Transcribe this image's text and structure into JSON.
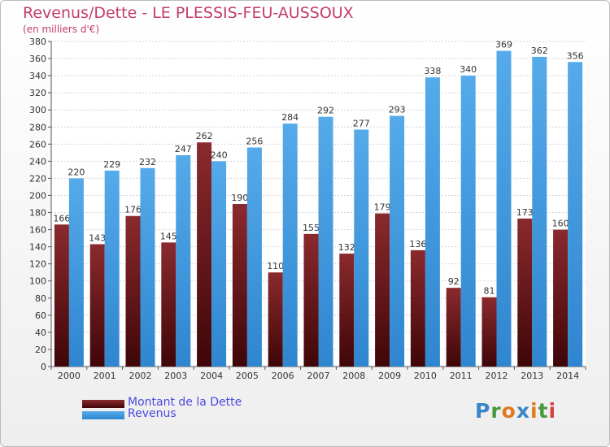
{
  "chart_data": {
    "type": "bar",
    "title": "Revenus/Dette - LE PLESSIS-FEU-AUSSOUX",
    "subtitle": "(en milliers d'€)",
    "categories": [
      "2000",
      "2001",
      "2002",
      "2003",
      "2004",
      "2005",
      "2006",
      "2007",
      "2008",
      "2009",
      "2010",
      "2011",
      "2012",
      "2013",
      "2014"
    ],
    "series": [
      {
        "name": "Montant de la Dette",
        "color": "#6b1418",
        "values": [
          166,
          143,
          176,
          145,
          262,
          190,
          110,
          155,
          132,
          179,
          136,
          92,
          81,
          173,
          160
        ]
      },
      {
        "name": "Revenus",
        "color": "#3f97dd",
        "values": [
          220,
          229,
          232,
          247,
          240,
          256,
          284,
          292,
          277,
          293,
          338,
          340,
          369,
          362,
          356
        ]
      }
    ],
    "ylim": [
      0,
      380
    ],
    "ytick_step": 20,
    "grid": true,
    "legend_position": "bottom-left"
  },
  "logo": {
    "text": "Proxiti"
  }
}
